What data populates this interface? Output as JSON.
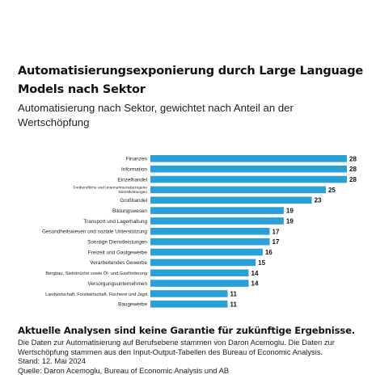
{
  "chart_data": {
    "type": "bar",
    "orientation": "horizontal",
    "title": "Automatisierungsexponierung durch Large Language Models nach Sektor",
    "subtitle": "Automatisierung nach Sektor, gewichtet nach Anteil an der Wertschöpfung",
    "categories": [
      "Finanzen",
      "Information",
      "Einzelhandel",
      "Freiberufliche und unternehmensbezogene Dienstleistungen",
      "Großhandel",
      "Bildungswesen",
      "Transport und Lagerhaltung",
      "Gesundheitswesen und soziale Unterstützung",
      "Sonstige Dienstleistungen",
      "Freizeit und Gastgewerbe",
      "Verarbeitendes Gewerbe",
      "Bergbau, Steinbrüche sowie Öl- und Gasförderung",
      "Versorgungsunternehmen",
      "Landwirtschaft, Forstwirtschaft, Fischerei und Jagd",
      "Baugewerbe"
    ],
    "label_lines": [
      [
        "Finanzen"
      ],
      [
        "Information"
      ],
      [
        "Einzelhandel"
      ],
      [
        "Freiberufliche und unternehmensbezogene",
        "Dienstleistungen"
      ],
      [
        "Großhandel"
      ],
      [
        "Bildungswesen"
      ],
      [
        "Transport und Lagerhaltung"
      ],
      [
        "Gesundheitswesen und soziale Unterstützung"
      ],
      [
        "Sonstige Dienstleistungen"
      ],
      [
        "Freizeit und Gastgewerbe"
      ],
      [
        "Verarbeitendes Gewerbe"
      ],
      [
        "Bergbau, Steinbrüche sowie Öl- und Gasförderung"
      ],
      [
        "Versorgungsunternehmen"
      ],
      [
        "Landwirtschaft, Forstwirtschaft, Fischerei und Jagd"
      ],
      [
        "Baugewerbe"
      ]
    ],
    "values": [
      28,
      28,
      28,
      25,
      23,
      19,
      19,
      17,
      17,
      16,
      15,
      14,
      14,
      11,
      11
    ],
    "xlim": [
      0,
      28
    ],
    "grid": false,
    "legend": "none",
    "bar_color": "#2a9fd8"
  },
  "footer": {
    "heading": "Aktuelle Analysen sind keine Garantie für zukünftige Ergebnisse.",
    "note": "Die Daten zur Automatisierung auf Berufsebene stammen von Daron Acemoglu. Die Daten zur Wertschöpfung stammen aus den Input-Output-Tabellen des Bureau of Economic Analysis.",
    "date": "Stand: 12. Mai 2024",
    "source": "Quelle: Daron Acemoglu, Bureau of Economic Analysis und AB"
  }
}
